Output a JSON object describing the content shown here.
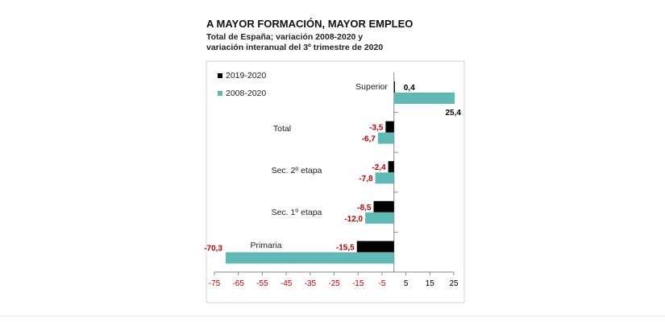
{
  "header": {
    "title": "A MAYOR FORMACIÓN, MAYOR EMPLEO",
    "subtitle_line1": "Total de España; variación 2008-2020 y",
    "subtitle_line2": "variación interanual del 3º trimestre de 2020"
  },
  "colors": {
    "series_2019_2020": "#000000",
    "series_2008_2020": "#5fb9b5",
    "negative_label": "#c00000",
    "positive_label": "#000000"
  },
  "chart_data": {
    "type": "bar",
    "orientation": "horizontal",
    "categories": [
      "Superior",
      "Total",
      "Sec. 2º etapa",
      "Sec. 1º etapa",
      "Primaria"
    ],
    "series": [
      {
        "name": "2019-2020",
        "values": [
          0.4,
          -3.5,
          -2.4,
          -8.5,
          -15.5
        ]
      },
      {
        "name": "2008-2020",
        "values": [
          25.4,
          -6.7,
          -7.8,
          -12.0,
          -70.3
        ]
      }
    ],
    "value_labels": {
      "2019-2020": [
        "0,4",
        "-3,5",
        "-2,4",
        "-8,5",
        "-15,5"
      ],
      "2008-2020": [
        "25,4",
        "-6,7",
        "-7,8",
        "-12,0",
        "-70,3"
      ]
    },
    "xlim": [
      -75,
      25
    ],
    "xticks": [
      -75,
      -65,
      -55,
      -45,
      -35,
      -25,
      -15,
      -5,
      5,
      15,
      25
    ],
    "xtick_labels": [
      "-75",
      "-65",
      "-55",
      "-45",
      "-35",
      "-25",
      "-15",
      "-5",
      "5",
      "15",
      "25"
    ],
    "legend": {
      "placement": "top-left",
      "entries": [
        "2019-2020",
        "2008-2020"
      ]
    },
    "grid": false
  }
}
